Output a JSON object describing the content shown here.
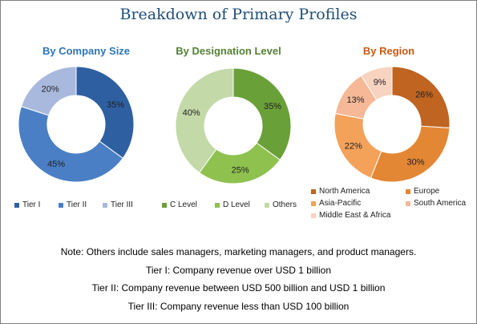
{
  "title": "Breakdown of Primary Profiles",
  "chart_data": [
    {
      "type": "pie",
      "title": "By Company Size",
      "title_color": "#2e75b6",
      "donut": true,
      "categories": [
        "Tier I",
        "Tier II",
        "Tier III"
      ],
      "values": [
        35,
        45,
        20
      ],
      "labels": [
        "35%",
        "45%",
        "20%"
      ],
      "colors": [
        "#2e5fa1",
        "#4a7fc5",
        "#a9b9de"
      ],
      "legend": "bottom"
    },
    {
      "type": "pie",
      "title": "By Designation Level",
      "title_color": "#548235",
      "donut": true,
      "categories": [
        "C Level",
        "D Level",
        "Others"
      ],
      "values": [
        35,
        25,
        40
      ],
      "labels": [
        "35%",
        "25%",
        "40%"
      ],
      "colors": [
        "#6aa038",
        "#8fc14f",
        "#c3d9a8"
      ],
      "legend": "bottom"
    },
    {
      "type": "pie",
      "title": "By Region",
      "title_color": "#c55a11",
      "donut": true,
      "categories": [
        "North America",
        "Europe",
        "Asia-Pacific",
        "South America",
        "Middle East & Africa"
      ],
      "values": [
        26,
        30,
        22,
        13,
        9
      ],
      "labels": [
        "26%",
        "30%",
        "22%",
        "13%",
        "9%"
      ],
      "colors": [
        "#bf6421",
        "#e38734",
        "#f4a15a",
        "#f6b896",
        "#f8d3c0"
      ],
      "legend": "bottom"
    }
  ],
  "notes": [
    "Note: Others include sales managers, marketing managers, and product managers.",
    "Tier I: Company revenue over USD 1 billion",
    "Tier II: Company revenue between USD 500 billion and USD 1 billion",
    "Tier III: Company revenue less than USD 100 billion"
  ]
}
